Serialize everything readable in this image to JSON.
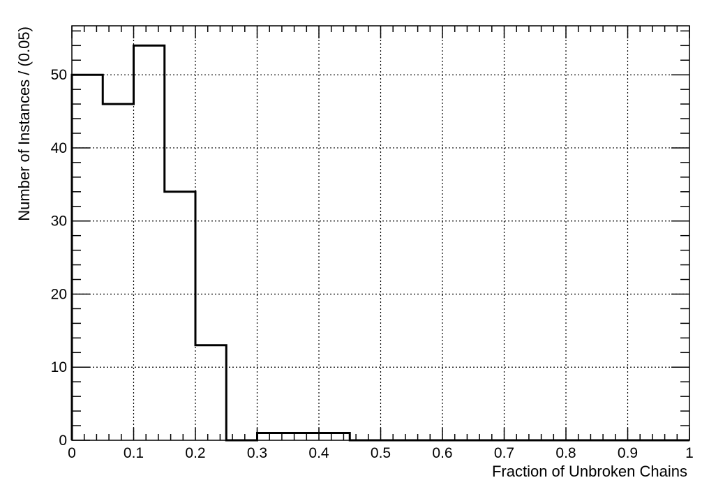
{
  "chart_data": {
    "type": "histogram",
    "xlabel": "Fraction of Unbroken Chains",
    "ylabel": "Number of Instances / (0.05)",
    "xlim": [
      0,
      1
    ],
    "ylim": [
      0,
      56.7
    ],
    "grid": true,
    "bin_width": 0.05,
    "bin_edges": [
      0,
      0.05,
      0.1,
      0.15,
      0.2,
      0.25,
      0.3,
      0.35,
      0.4,
      0.45,
      0.5,
      0.55,
      0.6,
      0.65,
      0.7,
      0.75,
      0.8,
      0.85,
      0.9,
      0.95,
      1.0
    ],
    "counts": [
      50,
      46,
      54,
      34,
      13,
      0,
      1,
      1,
      1,
      0,
      0,
      0,
      0,
      0,
      0,
      0,
      0,
      0,
      0,
      0
    ],
    "x_ticks": [
      {
        "value": 0,
        "label": "0"
      },
      {
        "value": 0.1,
        "label": "0.1"
      },
      {
        "value": 0.2,
        "label": "0.2"
      },
      {
        "value": 0.3,
        "label": "0.3"
      },
      {
        "value": 0.4,
        "label": "0.4"
      },
      {
        "value": 0.5,
        "label": "0.5"
      },
      {
        "value": 0.6,
        "label": "0.6"
      },
      {
        "value": 0.7,
        "label": "0.7"
      },
      {
        "value": 0.8,
        "label": "0.8"
      },
      {
        "value": 0.9,
        "label": "0.9"
      },
      {
        "value": 1,
        "label": "1"
      }
    ],
    "y_ticks": [
      {
        "value": 0,
        "label": "0"
      },
      {
        "value": 10,
        "label": "10"
      },
      {
        "value": 20,
        "label": "20"
      },
      {
        "value": 30,
        "label": "30"
      },
      {
        "value": 40,
        "label": "40"
      },
      {
        "value": 50,
        "label": "50"
      }
    ],
    "x_minor_step": 0.02,
    "y_minor_step": 2,
    "line_color": "#000000",
    "grid_color": "#000000"
  }
}
